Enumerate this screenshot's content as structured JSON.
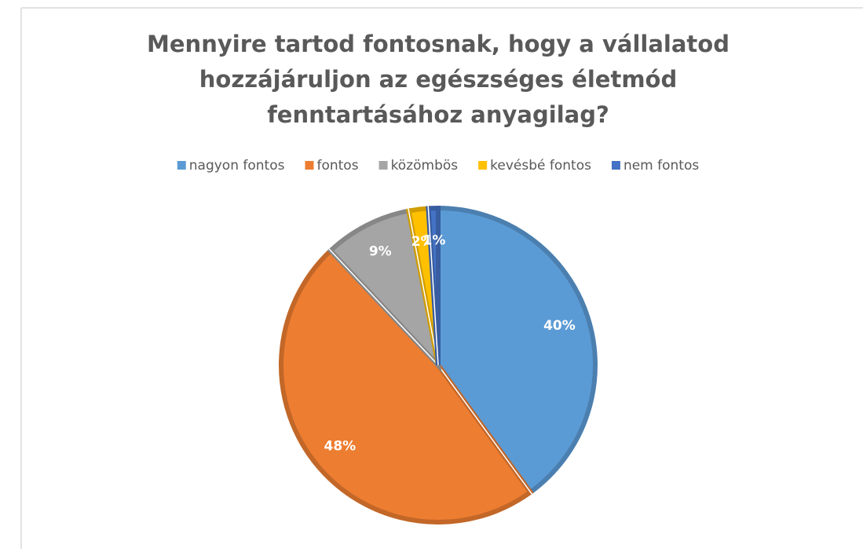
{
  "chart_data": {
    "type": "pie",
    "title": [
      "Mennyire tartod fontosnak, hogy a vállalatod",
      "hozzájáruljon az egészséges életmód",
      "fenntartásához anyagilag?"
    ],
    "categories": [
      "nagyon fontos",
      "fontos",
      "közömbös",
      "kevésbé fontos",
      "nem fontos"
    ],
    "values": [
      40,
      48,
      9,
      2,
      1
    ],
    "value_labels": [
      "40%",
      "48%",
      "9%",
      "2%",
      "1%"
    ],
    "colors": [
      "#5b9bd5",
      "#ed7d31",
      "#a5a5a5",
      "#ffc000",
      "#4472c4"
    ],
    "legend": "top"
  }
}
